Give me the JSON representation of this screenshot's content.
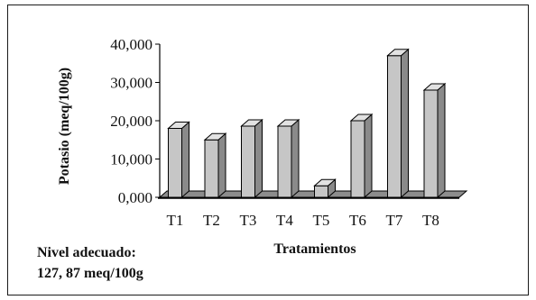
{
  "chart_data": {
    "type": "bar",
    "style": "3d-column",
    "categories": [
      "T1",
      "T2",
      "T3",
      "T4",
      "T5",
      "T6",
      "T7",
      "T8"
    ],
    "values": [
      18000,
      15000,
      18600,
      18600,
      3000,
      20000,
      37000,
      28000
    ],
    "xlabel": "Tratamientos",
    "ylabel": "Potasio (meq/100g)",
    "ylim": [
      0,
      40000
    ],
    "yticks": [
      "0,000",
      "10,000",
      "20,000",
      "30,000",
      "40,000"
    ],
    "grid": false,
    "legend": "none",
    "colors": {
      "bar_front": "#c6c6c6",
      "bar_side": "#8a8a8a",
      "bar_top": "#e2e2e2",
      "floor": "#8c8c8c",
      "outline": "#000000"
    }
  },
  "note": {
    "line1": "Nivel adecuado:",
    "line2": "127, 87 meq/100g"
  }
}
